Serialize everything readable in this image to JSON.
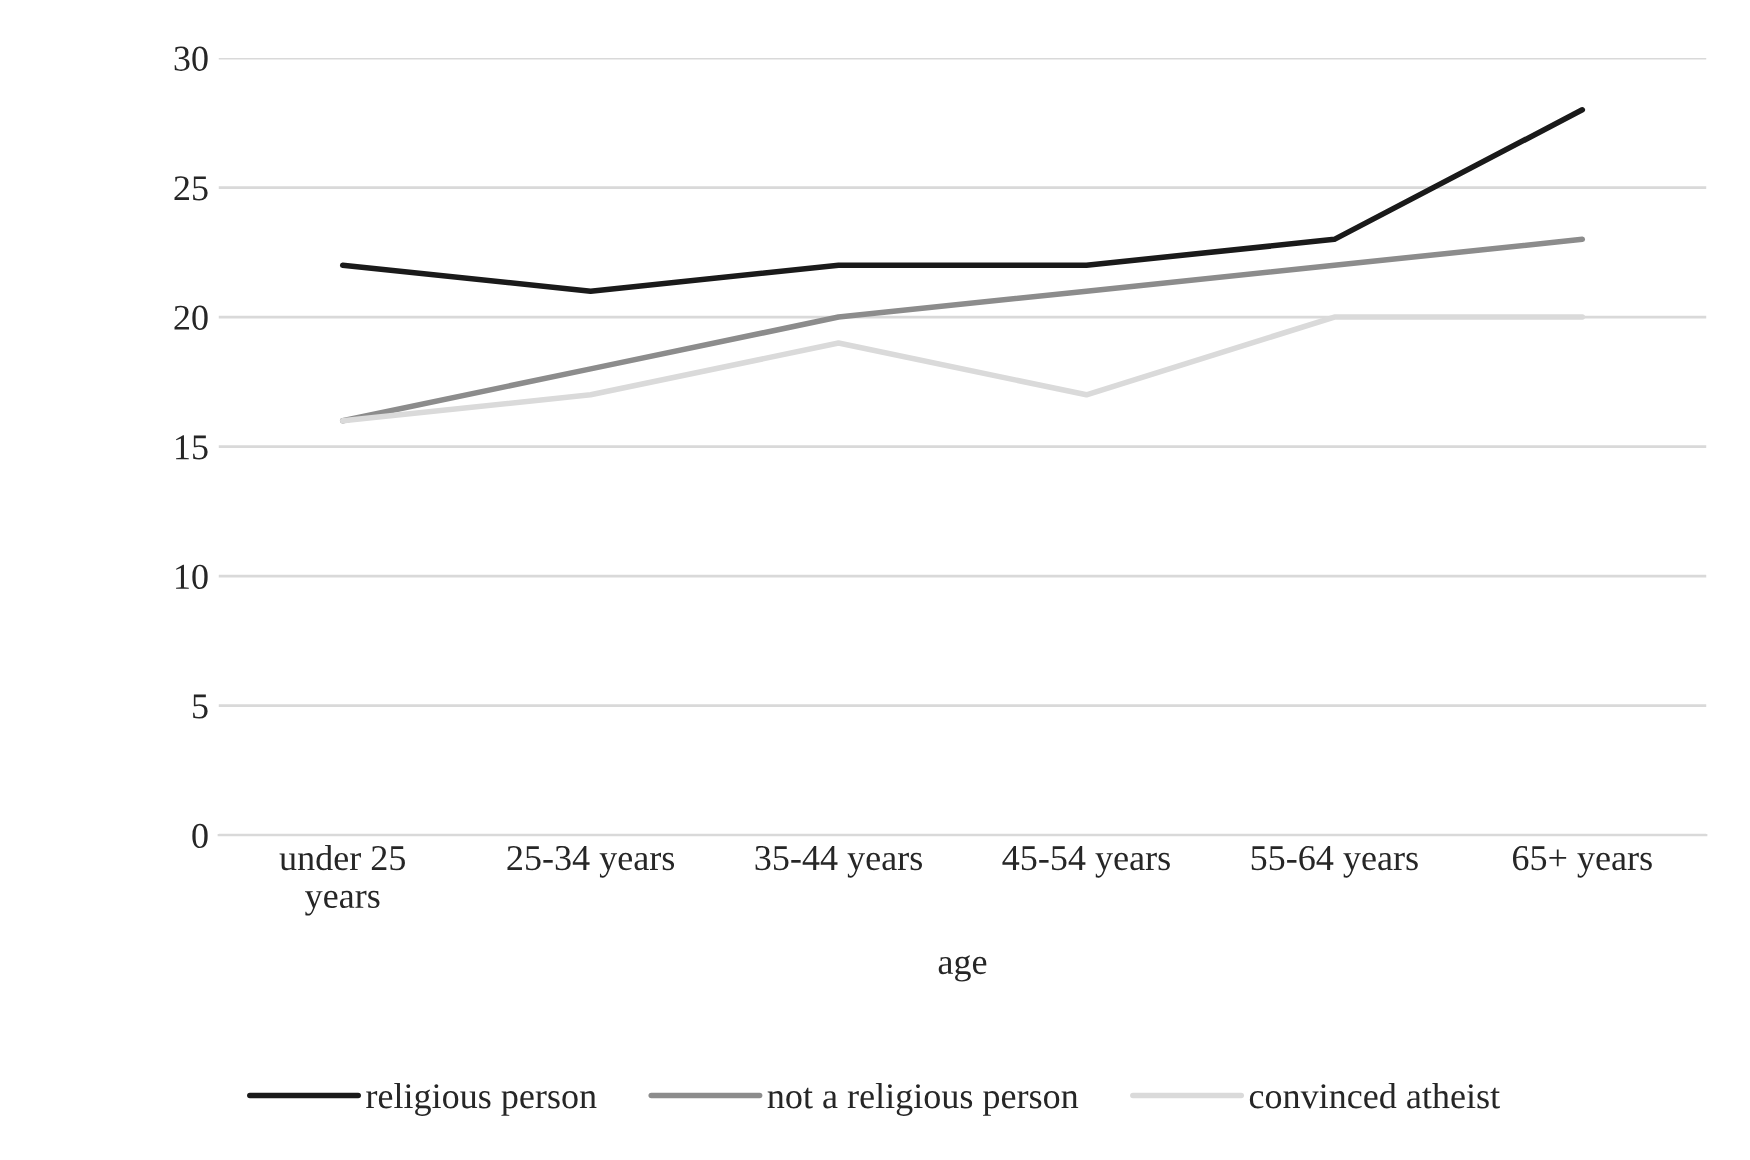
{
  "chart_data": {
    "type": "line",
    "xlabel": "age",
    "categories": [
      "under 25\nyears",
      "25-34 years",
      "35-44 years",
      "45-54 years",
      "55-64 years",
      "65+ years"
    ],
    "series": [
      {
        "name": "religious person",
        "color": "#1a1a1a",
        "values": [
          22,
          21,
          22,
          22,
          23,
          28
        ]
      },
      {
        "name": "not a religious person",
        "color": "#8c8c8c",
        "values": [
          16,
          18,
          20,
          21,
          22,
          23
        ]
      },
      {
        "name": "convinced atheist",
        "color": "#dadada",
        "values": [
          16,
          17,
          19,
          17,
          20,
          20
        ]
      }
    ],
    "ylim": [
      0,
      30
    ],
    "yticks": [
      0,
      5,
      10,
      15,
      20,
      25,
      30
    ],
    "grid": "y",
    "legend": "bottom",
    "marker": "none",
    "line_style": "solid"
  }
}
